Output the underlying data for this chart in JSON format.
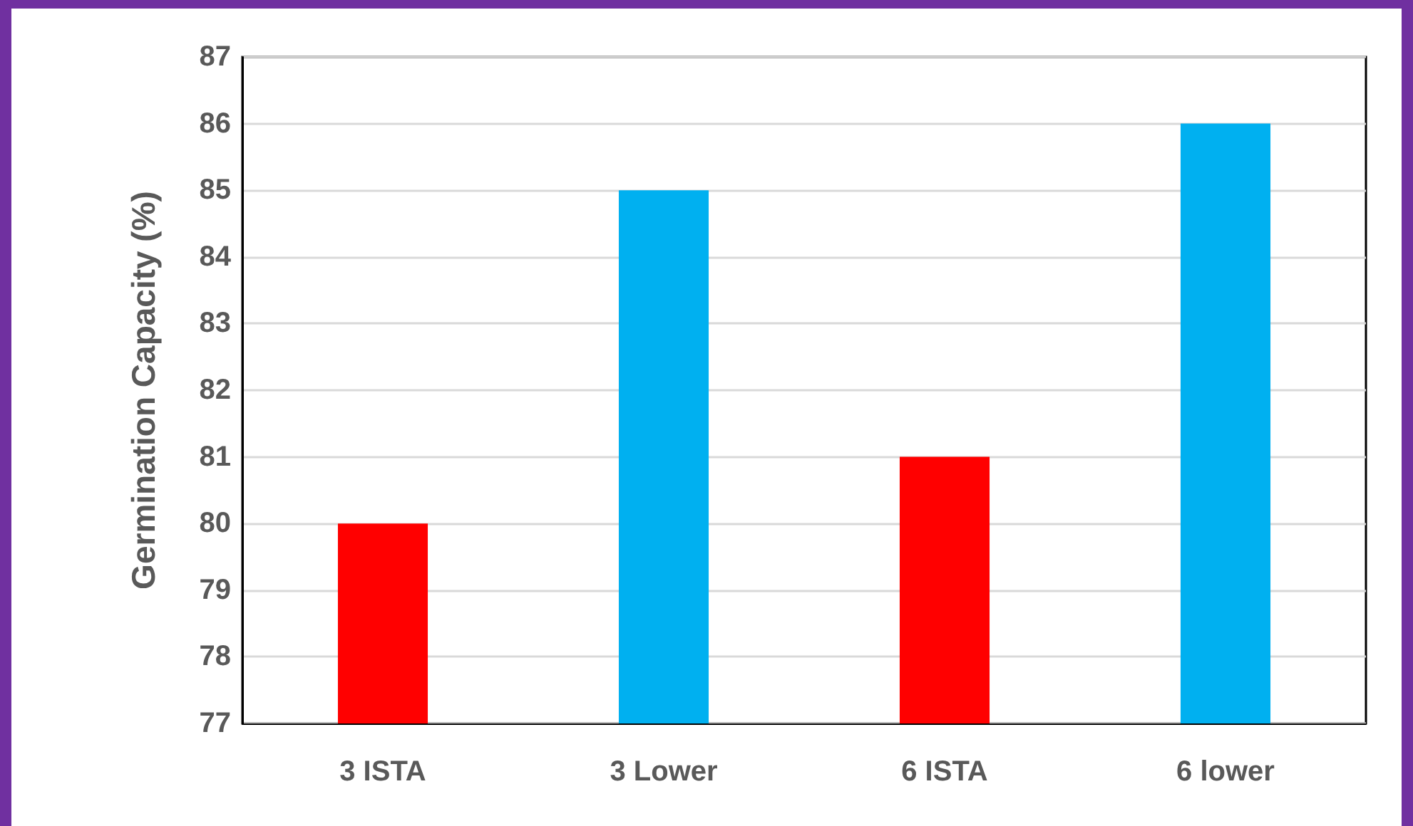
{
  "chart_data": {
    "type": "bar",
    "ylabel": "Germination Capacity (%)",
    "categories": [
      "3 ISTA",
      "3 Lower",
      "6 ISTA",
      "6 lower"
    ],
    "values": [
      80,
      85,
      81,
      86
    ],
    "colors": [
      "#ff0000",
      "#00b0f0",
      "#ff0000",
      "#00b0f0"
    ],
    "ylim": [
      77,
      87
    ],
    "yticks": [
      77,
      78,
      79,
      80,
      81,
      82,
      83,
      84,
      85,
      86,
      87
    ],
    "grid": "y"
  }
}
